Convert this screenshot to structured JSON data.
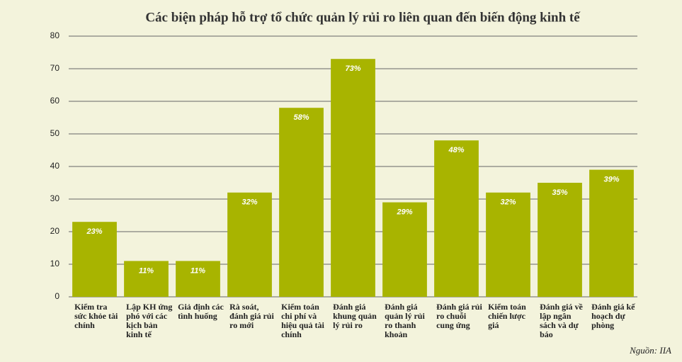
{
  "chart_data": {
    "type": "bar",
    "title": "Các biện pháp hỗ trợ tổ chức quản lý rủi ro liên quan đến biến động kinh tế",
    "categories": [
      "Kiểm tra sức khỏe tài chính",
      "Lập KH ứng phó với các kịch bản kinh tế",
      "Giả định các tình huống",
      "Rà soát, đánh giá rủi ro mới",
      "Kiểm toán chi phí và hiệu quả tài chính",
      "Đánh giá khung quản lý rủi ro",
      "Đánh giá quản lý rủi ro thanh khoản",
      "Đánh giá rủi ro chuỗi cung ứng",
      "Kiểm toán chiến lược giá",
      "Đánh giá về lập ngân sách và dự báo",
      "Đánh giá kế hoạch dự phòng"
    ],
    "values": [
      23,
      11,
      11,
      32,
      58,
      73,
      29,
      48,
      32,
      35,
      39
    ],
    "value_labels": [
      "23%",
      "11%",
      "11%",
      "32%",
      "58%",
      "73%",
      "29%",
      "48%",
      "32%",
      "35%",
      "39%"
    ],
    "color": "#a8b400",
    "ylim": [
      0,
      80
    ],
    "yticks": [
      0,
      10,
      20,
      30,
      40,
      50,
      60,
      70,
      80
    ],
    "grid": true,
    "source": "Nguồn: IIA"
  }
}
